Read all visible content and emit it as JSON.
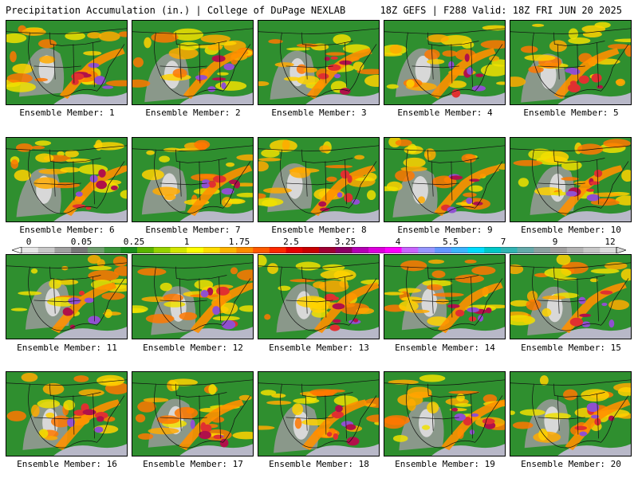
{
  "header": {
    "left_title": "Precipitation Accumulation (in.) | College of DuPage NEXLAB",
    "right_title": "18Z GEFS | F288 Valid: 18Z FRI JUN 20 2025"
  },
  "members": [
    {
      "label": "Ensemble Member: 1"
    },
    {
      "label": "Ensemble Member: 2"
    },
    {
      "label": "Ensemble Member: 3"
    },
    {
      "label": "Ensemble Member: 4"
    },
    {
      "label": "Ensemble Member: 5"
    },
    {
      "label": "Ensemble Member: 6"
    },
    {
      "label": "Ensemble Member: 7"
    },
    {
      "label": "Ensemble Member: 8"
    },
    {
      "label": "Ensemble Member: 9"
    },
    {
      "label": "Ensemble Member: 10"
    },
    {
      "label": "Ensemble Member: 11"
    },
    {
      "label": "Ensemble Member: 12"
    },
    {
      "label": "Ensemble Member: 13"
    },
    {
      "label": "Ensemble Member: 14"
    },
    {
      "label": "Ensemble Member: 15"
    },
    {
      "label": "Ensemble Member: 16"
    },
    {
      "label": "Ensemble Member: 17"
    },
    {
      "label": "Ensemble Member: 18"
    },
    {
      "label": "Ensemble Member: 19"
    },
    {
      "label": "Ensemble Member: 20"
    }
  ],
  "colorbar": {
    "tick_labels": [
      "0",
      "0.05",
      "0.25",
      "1",
      "1.75",
      "2.5",
      "3.25",
      "4",
      "5.5",
      "7",
      "9",
      "12"
    ],
    "colors": [
      "#e6e6e6",
      "#c8c8c8",
      "#a0a0a0",
      "#787878",
      "#6e9e6e",
      "#3c963c",
      "#1e8c1e",
      "#5ab400",
      "#96d200",
      "#d2e600",
      "#ffff00",
      "#ffdc00",
      "#ffb400",
      "#ff8c00",
      "#ff5a00",
      "#ff2800",
      "#e60000",
      "#c80000",
      "#a00032",
      "#8c0064",
      "#b400b4",
      "#dc00dc",
      "#ff00ff",
      "#c864ff",
      "#9696ff",
      "#6496ff",
      "#3cb4ff",
      "#00dcff",
      "#00c8c8",
      "#32b4b4",
      "#64aaaa",
      "#8ca0a0",
      "#a0a0a0",
      "#b4b4b4",
      "#c8c8c8",
      "#dcdcdc"
    ]
  }
}
